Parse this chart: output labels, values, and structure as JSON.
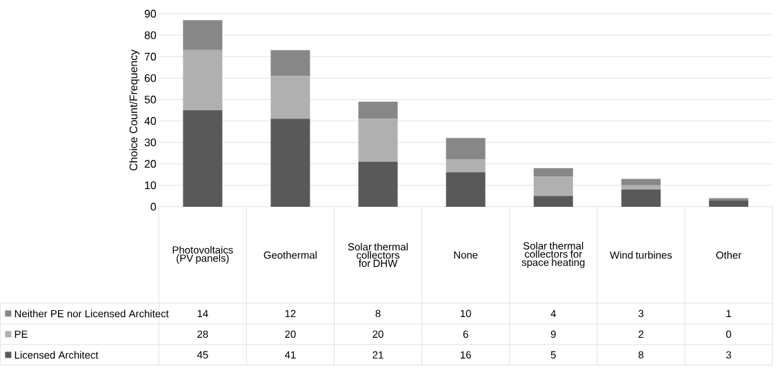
{
  "chart_data": {
    "type": "bar",
    "stacked": true,
    "ylabel": "Choice Count/Frequency",
    "categories": [
      "Photovoltaics (PV panels)",
      "Geothermal",
      "Solar thermal collectors for DHW",
      "None",
      "Solar thermal collectors for space heating",
      "Wind turbines",
      "Other"
    ],
    "series": [
      {
        "name": "Licensed Architect",
        "color": "#595959",
        "values": [
          45,
          41,
          21,
          16,
          5,
          8,
          3
        ]
      },
      {
        "name": "PE",
        "color": "#b0b0b0",
        "values": [
          28,
          20,
          20,
          6,
          9,
          2,
          0
        ]
      },
      {
        "name": "Neither PE nor Licensed Architect",
        "color": "#878787",
        "values": [
          14,
          12,
          8,
          10,
          4,
          3,
          1
        ]
      }
    ],
    "ylim": [
      0,
      90
    ],
    "yticks": [
      0,
      10,
      20,
      30,
      40,
      50,
      60,
      70,
      80,
      90
    ],
    "grid": "y",
    "legend": "bottom",
    "data_labels": true
  }
}
